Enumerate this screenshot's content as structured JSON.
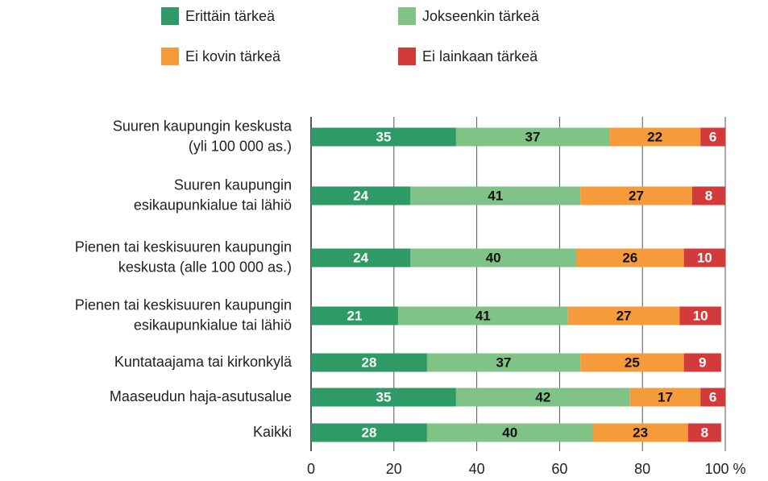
{
  "chart_data": {
    "type": "stacked_barh",
    "categories": [
      "Suuren kaupungin keskusta\n(yli 100 000 as.)",
      "Suuren kaupungin\nesikaupunkialue tai lähiö",
      "Pienen tai keskisuuren kaupungin\nkeskusta (alle 100 000 as.)",
      "Pienen tai keskisuuren kaupungin\nesikaupunkialue tai lähiö",
      "Kuntataajama tai kirkonkylä",
      "Maaseudun haja-asutusalue",
      "Kaikki"
    ],
    "series": [
      {
        "name": "Erittäin tärkeä",
        "color": "#2e9a65",
        "values": [
          35,
          24,
          24,
          21,
          28,
          35,
          28
        ]
      },
      {
        "name": "Jokseenkin tärkeä",
        "color": "#80c387",
        "values": [
          37,
          41,
          40,
          41,
          37,
          42,
          40
        ]
      },
      {
        "name": "Ei kovin tärkeä",
        "color": "#f59b3b",
        "values": [
          22,
          27,
          26,
          27,
          25,
          17,
          23
        ]
      },
      {
        "name": "Ei lainkaan tärkeä",
        "color": "#d33b3b",
        "values": [
          6,
          8,
          10,
          10,
          9,
          6,
          8
        ]
      }
    ],
    "xlim": [
      0,
      100
    ],
    "xticks": [
      0,
      20,
      40,
      60,
      80,
      {
        "value": 100,
        "label": "100 %"
      }
    ],
    "grid": true
  }
}
